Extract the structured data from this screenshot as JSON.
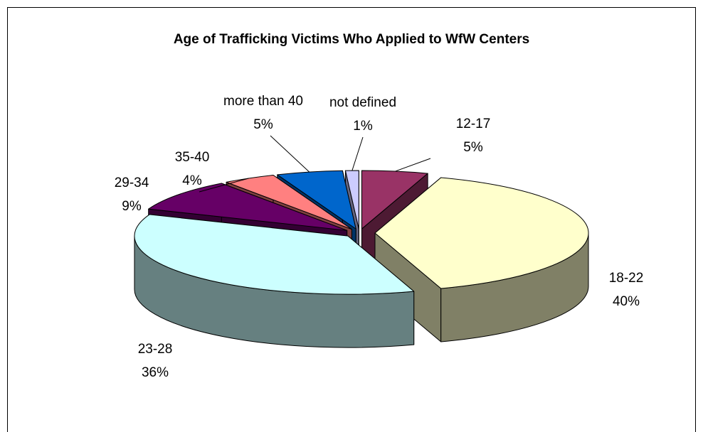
{
  "chart_data": {
    "type": "pie",
    "title": "Age of Trafficking Victims Who Applied to WfW Centers",
    "categories": [
      "12-17",
      "18-22",
      "23-28",
      "29-34",
      "35-40",
      "more than 40",
      "not defined"
    ],
    "values": [
      5,
      40,
      36,
      9,
      4,
      5,
      1
    ],
    "value_labels": [
      "5%",
      "40%",
      "36%",
      "9%",
      "4%",
      "5%",
      "1%"
    ],
    "colors": [
      "#993366",
      "#FFFFCC",
      "#CCFFFF",
      "#660066",
      "#FF8080",
      "#0066CC",
      "#CCCCFF"
    ]
  }
}
